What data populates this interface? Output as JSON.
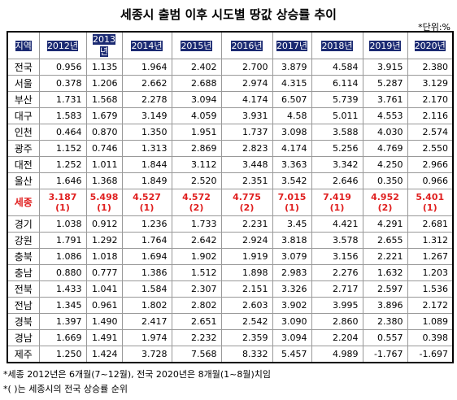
{
  "header": {
    "title": "세종시 출범 이후 시도별 땅값 상승률 추이",
    "unit": "*단위:%"
  },
  "table": {
    "columns": [
      "지역",
      "2012년",
      "2013년",
      "2014년",
      "2015년",
      "2016년",
      "2017년",
      "2018년",
      "2019년",
      "2020년"
    ],
    "rows": [
      [
        "전국",
        "0.956",
        "1.135",
        "1.964",
        "2.402",
        "2.700",
        "3.879",
        "4.584",
        "3.915",
        "2.380"
      ],
      [
        "서울",
        "0.378",
        "1.206",
        "2.662",
        "2.688",
        "2.974",
        "4.315",
        "6.114",
        "5.287",
        "3.129"
      ],
      [
        "부산",
        "1.731",
        "1.568",
        "2.278",
        "3.094",
        "4.174",
        "6.507",
        "5.739",
        "3.761",
        "2.170"
      ],
      [
        "대구",
        "1.583",
        "1.679",
        "3.149",
        "4.059",
        "3.931",
        "4.58",
        "5.011",
        "4.553",
        "2.116"
      ],
      [
        "인천",
        "0.464",
        "0.870",
        "1.350",
        "1.951",
        "1.737",
        "3.098",
        "3.588",
        "4.030",
        "2.574"
      ],
      [
        "광주",
        "1.152",
        "0.746",
        "1.313",
        "2.869",
        "2.823",
        "4.174",
        "5.256",
        "4.769",
        "2.550"
      ],
      [
        "대전",
        "1.252",
        "1.011",
        "1.844",
        "3.112",
        "3.448",
        "3.363",
        "3.342",
        "4.250",
        "2.966"
      ],
      [
        "울산",
        "1.646",
        "1.368",
        "1.849",
        "2.520",
        "2.351",
        "3.542",
        "2.646",
        "0.350",
        "0.966"
      ],
      [
        "세종",
        [
          "3.187",
          "(1)"
        ],
        [
          "5.498",
          "(1)"
        ],
        [
          "4.527",
          "(1)"
        ],
        [
          "4.572",
          "(2)"
        ],
        [
          "4.775",
          "(2)"
        ],
        [
          "7.015",
          "(1)"
        ],
        [
          "7.419",
          "(1)"
        ],
        [
          "4.952",
          "(2)"
        ],
        [
          "5.401",
          "(1)"
        ]
      ],
      [
        "경기",
        "1.038",
        "0.912",
        "1.236",
        "1.733",
        "2.231",
        "3.45",
        "4.421",
        "4.291",
        "2.681"
      ],
      [
        "강원",
        "1.791",
        "1.292",
        "1.764",
        "2.642",
        "2.924",
        "3.818",
        "3.578",
        "2.655",
        "1.312"
      ],
      [
        "충북",
        "1.086",
        "1.018",
        "1.694",
        "1.902",
        "1.919",
        "3.079",
        "3.156",
        "2.221",
        "1.267"
      ],
      [
        "충남",
        "0.880",
        "0.777",
        "1.386",
        "1.512",
        "1.898",
        "2.983",
        "2.276",
        "1.632",
        "1.203"
      ],
      [
        "전북",
        "1.433",
        "1.041",
        "1.584",
        "2.307",
        "2.151",
        "3.326",
        "2.717",
        "2.597",
        "1.536"
      ],
      [
        "전남",
        "1.345",
        "0.961",
        "1.802",
        "2.802",
        "2.603",
        "3.902",
        "3.995",
        "3.896",
        "2.172"
      ],
      [
        "경북",
        "1.397",
        "1.490",
        "2.417",
        "2.651",
        "2.542",
        "3.090",
        "2.860",
        "2.380",
        "1.089"
      ],
      [
        "경남",
        "1.669",
        "1.491",
        "1.974",
        "2.232",
        "2.359",
        "3.094",
        "2.204",
        "0.557",
        "0.398"
      ],
      [
        "제주",
        "1.250",
        "1.424",
        "3.728",
        "7.568",
        "8.332",
        "5.457",
        "4.989",
        "-1.767",
        "-1.697"
      ]
    ]
  },
  "notes": [
    "*세종 2012년은 6개월(7~12월), 전국 2020년은 8개월(1~8월)치임",
    "*( )는 세종시의 전국 상승률 순위"
  ]
}
